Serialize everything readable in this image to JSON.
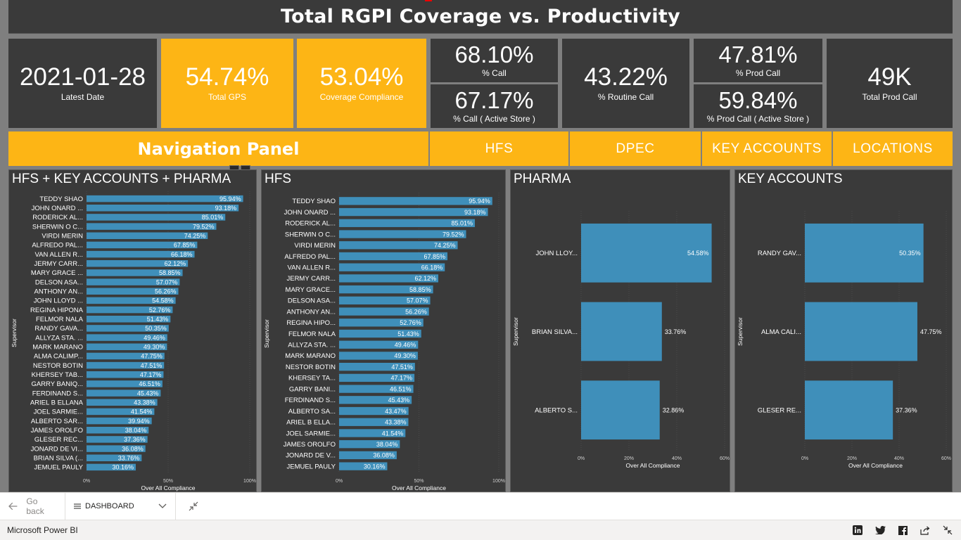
{
  "report": {
    "title": "Total RGPI Coverage vs. Productivity"
  },
  "kpis": {
    "latest_date": {
      "value": "2021-01-28",
      "label": "Latest Date"
    },
    "total_gps": {
      "value": "54.74%",
      "label": "Total GPS"
    },
    "coverage": {
      "value": "53.04%",
      "label": "Coverage Compliance"
    },
    "call": {
      "value": "68.10%",
      "label": "% Call"
    },
    "call_active": {
      "value": "67.17%",
      "label": "% Call ( Active Store )"
    },
    "routine_call": {
      "value": "43.22%",
      "label": "% Routine Call"
    },
    "prod_call": {
      "value": "47.81%",
      "label": "% Prod Call"
    },
    "prod_call_active": {
      "value": "59.84%",
      "label": "% Prod Call ( Active Store )"
    },
    "total_prod_call": {
      "value": "49K",
      "label": "Total Prod Call"
    }
  },
  "navigation": {
    "title": "Navigation Panel",
    "buttons": [
      "HFS",
      "DPEC",
      "KEY ACCOUNTS",
      "LOCATIONS"
    ]
  },
  "colors": {
    "accent": "#fdb515",
    "bar": "#3f8fba",
    "panel": "#3a3a3a"
  },
  "chart_data": [
    {
      "type": "bar",
      "orientation": "horizontal",
      "title": "HFS + KEY ACCOUNTS + PHARMA",
      "xlabel": "Over All Compliance",
      "ylabel": "Supervisor",
      "xlim": [
        0,
        100
      ],
      "xticks": [
        "0%",
        "50%",
        "100%"
      ],
      "categories": [
        "TEDDY SHAO",
        "JOHN ONARD ...",
        "RODERICK AL...",
        "SHERWIN O C...",
        "VIRDI MERIN",
        "ALFREDO PAL...",
        "VAN ALLEN R...",
        "JERMY CARR...",
        "MARY GRACE ...",
        "DELSON ASA...",
        "ANTHONY AN...",
        "JOHN LLOYD ...",
        "REGINA HIPONA",
        "FELMOR NALA",
        "RANDY GAVA...",
        "ALLYZA STA. ...",
        "MARK MARANO",
        "ALMA CALIMP...",
        "NESTOR BOTIN",
        "KHERSEY TAB...",
        "GARRY BANIQ...",
        "FERDINAND S...",
        "ARIEL B ELLANA",
        "JOEL SARMIE...",
        "ALBERTO SAR...",
        "JAMES OROLFO",
        "GLESER REC...",
        "JONARD DE VI...",
        "BRIAN SILVA (...",
        "JEMUEL PAULY"
      ],
      "values": [
        95.94,
        93.18,
        85.01,
        79.52,
        74.25,
        67.85,
        66.18,
        62.12,
        58.85,
        57.07,
        56.26,
        54.58,
        52.76,
        51.43,
        50.35,
        49.46,
        49.3,
        47.75,
        47.51,
        47.17,
        46.51,
        45.43,
        43.38,
        41.54,
        39.94,
        38.04,
        37.36,
        36.08,
        33.76,
        30.16
      ],
      "labels": [
        "95.94%",
        "93.18%",
        "85.01%",
        "79.52%",
        "74.25%",
        "67.85%",
        "66.18%",
        "62.12%",
        "58.85%",
        "57.07%",
        "56.26%",
        "54.58%",
        "52.76%",
        "51.43%",
        "50.35%",
        "49.46%",
        "49.30%",
        "47.75%",
        "47.51%",
        "47.17%",
        "46.51%",
        "45.43%",
        "43.38%",
        "41.54%",
        "39.94%",
        "38.04%",
        "37.36%",
        "36.08%",
        "33.76%",
        "30.16%"
      ]
    },
    {
      "type": "bar",
      "orientation": "horizontal",
      "title": "HFS",
      "xlabel": "Over All Compliance",
      "ylabel": "Supervisor",
      "xlim": [
        0,
        100
      ],
      "xticks": [
        "0%",
        "50%",
        "100%"
      ],
      "categories": [
        "TEDDY SHAO",
        "JOHN ONARD ...",
        "RODERICK AL...",
        "SHERWIN O C...",
        "VIRDI MERIN",
        "ALFREDO PAL...",
        "VAN ALLEN R...",
        "JERMY CARR...",
        "MARY GRACE...",
        "DELSON ASA...",
        "ANTHONY AN...",
        "REGINA HIPO...",
        "FELMOR NALA",
        "ALLYZA STA. ...",
        "MARK MARANO",
        "NESTOR BOTIN",
        "KHERSEY TA...",
        "GARRY BANI...",
        "FERDINAND S...",
        "ALBERTO SA...",
        "ARIEL B ELLA...",
        "JOEL SARMIE...",
        "JAMES OROLFO",
        "JONARD DE V...",
        "JEMUEL PAULY"
      ],
      "values": [
        95.94,
        93.18,
        85.01,
        79.52,
        74.25,
        67.85,
        66.18,
        62.12,
        58.85,
        57.07,
        56.26,
        52.76,
        51.43,
        49.46,
        49.3,
        47.51,
        47.17,
        46.51,
        45.43,
        43.47,
        43.38,
        41.54,
        38.04,
        36.08,
        30.16
      ],
      "labels": [
        "95.94%",
        "93.18%",
        "85.01%",
        "79.52%",
        "74.25%",
        "67.85%",
        "66.18%",
        "62.12%",
        "58.85%",
        "57.07%",
        "56.26%",
        "52.76%",
        "51.43%",
        "49.46%",
        "49.30%",
        "47.51%",
        "47.17%",
        "46.51%",
        "45.43%",
        "43.47%",
        "43.38%",
        "41.54%",
        "38.04%",
        "36.08%",
        "30.16%"
      ]
    },
    {
      "type": "bar",
      "orientation": "horizontal",
      "title": "PHARMA",
      "xlabel": "Over All Compliance",
      "ylabel": "Supervisor",
      "xlim": [
        0,
        60
      ],
      "xticks": [
        "0%",
        "20%",
        "40%",
        "60%"
      ],
      "categories": [
        "JOHN LLOY...",
        "BRIAN SILVA...",
        "ALBERTO S..."
      ],
      "values": [
        54.58,
        33.76,
        32.86
      ],
      "labels": [
        "54.58%",
        "33.76%",
        "32.86%"
      ]
    },
    {
      "type": "bar",
      "orientation": "horizontal",
      "title": "KEY ACCOUNTS",
      "xlabel": "Over All Compliance",
      "ylabel": "Supervisor",
      "xlim": [
        0,
        60
      ],
      "xticks": [
        "0%",
        "20%",
        "40%",
        "60%"
      ],
      "categories": [
        "RANDY GAV...",
        "ALMA CALI...",
        "GLESER RE..."
      ],
      "values": [
        50.35,
        47.75,
        37.36
      ],
      "labels": [
        "50.35%",
        "47.75%",
        "37.36%"
      ]
    }
  ],
  "bottom_bar": {
    "go_back": "Go back",
    "page": "DASHBOARD",
    "brand": "Microsoft Power BI"
  }
}
